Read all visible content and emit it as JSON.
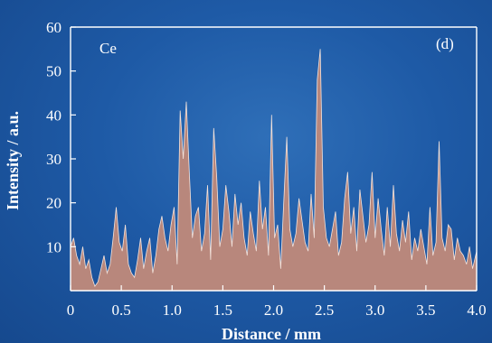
{
  "chart_data": {
    "type": "area",
    "title": "",
    "xlabel": "Distance / mm",
    "ylabel": "Intensity / a.u.",
    "xlim": [
      0,
      4.0
    ],
    "ylim": [
      0,
      60
    ],
    "xticks": [
      "0",
      "0.5",
      "1.0",
      "1.5",
      "2.0",
      "2.5",
      "3.0",
      "3.5",
      "4.0"
    ],
    "yticks": [
      "10",
      "20",
      "30",
      "40",
      "50",
      "60"
    ],
    "annotations": {
      "element": "Ce",
      "panel": "(d)"
    },
    "series": [
      {
        "x": [
          0.0,
          0.03,
          0.06,
          0.09,
          0.12,
          0.15,
          0.18,
          0.21,
          0.24,
          0.27,
          0.3,
          0.33,
          0.36,
          0.39,
          0.42,
          0.45,
          0.48,
          0.51,
          0.54,
          0.57,
          0.6,
          0.63,
          0.66,
          0.69,
          0.72,
          0.75,
          0.78,
          0.81,
          0.84,
          0.87,
          0.9,
          0.93,
          0.96,
          0.99,
          1.02,
          1.05,
          1.08,
          1.11,
          1.14,
          1.17,
          1.2,
          1.23,
          1.26,
          1.29,
          1.32,
          1.35,
          1.38,
          1.41,
          1.44,
          1.47,
          1.5,
          1.53,
          1.56,
          1.59,
          1.62,
          1.65,
          1.68,
          1.71,
          1.74,
          1.77,
          1.8,
          1.83,
          1.86,
          1.89,
          1.92,
          1.95,
          1.98,
          2.01,
          2.04,
          2.07,
          2.1,
          2.13,
          2.16,
          2.19,
          2.22,
          2.25,
          2.28,
          2.31,
          2.34,
          2.37,
          2.4,
          2.43,
          2.46,
          2.49,
          2.52,
          2.55,
          2.58,
          2.61,
          2.64,
          2.67,
          2.7,
          2.73,
          2.76,
          2.79,
          2.82,
          2.85,
          2.88,
          2.91,
          2.94,
          2.97,
          3.0,
          3.03,
          3.06,
          3.09,
          3.12,
          3.15,
          3.18,
          3.21,
          3.24,
          3.27,
          3.3,
          3.33,
          3.36,
          3.39,
          3.42,
          3.45,
          3.48,
          3.51,
          3.54,
          3.57,
          3.6,
          3.63,
          3.66,
          3.69,
          3.72,
          3.75,
          3.78,
          3.81,
          3.84,
          3.87,
          3.9,
          3.93,
          3.96,
          4.0
        ],
        "values": [
          10,
          12,
          8,
          6,
          10,
          5,
          7,
          3,
          1,
          2,
          5,
          8,
          4,
          6,
          12,
          19,
          11,
          9,
          15,
          6,
          4,
          3,
          7,
          12,
          5,
          9,
          12,
          4,
          8,
          14,
          17,
          12,
          9,
          15,
          19,
          6,
          41,
          30,
          43,
          27,
          12,
          17,
          19,
          9,
          13,
          24,
          7,
          37,
          26,
          10,
          14,
          24,
          18,
          10,
          22,
          15,
          20,
          12,
          8,
          18,
          13,
          9,
          25,
          14,
          19,
          8,
          40,
          12,
          15,
          5,
          20,
          35,
          14,
          10,
          13,
          21,
          16,
          11,
          9,
          22,
          12,
          48,
          55,
          19,
          12,
          10,
          14,
          18,
          8,
          11,
          21,
          27,
          13,
          19,
          9,
          23,
          17,
          11,
          15,
          27,
          12,
          21,
          14,
          8,
          19,
          10,
          24,
          13,
          9,
          16,
          11,
          18,
          7,
          12,
          9,
          14,
          10,
          6,
          19,
          8,
          11,
          34,
          12,
          9,
          15,
          14,
          7,
          12,
          9,
          8,
          6,
          10,
          5,
          9
        ]
      }
    ]
  }
}
